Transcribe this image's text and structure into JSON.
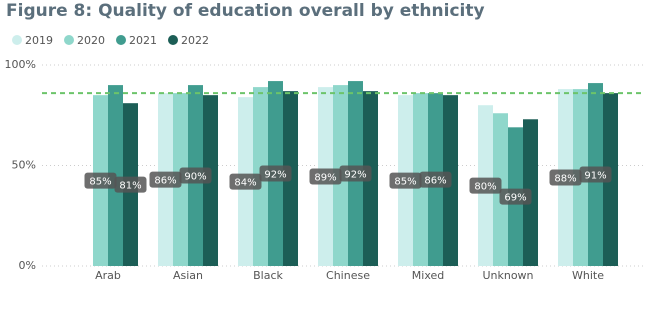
{
  "chart_data": {
    "type": "bar",
    "title": "Figure 8: Quality of education overall by ethnicity",
    "categories": [
      "Arab",
      "Asian",
      "Black",
      "Chinese",
      "Mixed",
      "Unknown",
      "White"
    ],
    "series": [
      {
        "name": "2019",
        "color": "#cdeeec",
        "values": [
          null,
          86,
          84,
          89,
          85,
          80,
          88
        ],
        "value_labels": [
          null,
          "86%",
          "84%",
          "89%",
          "85%",
          "80%",
          "88%"
        ]
      },
      {
        "name": "2020",
        "color": "#8fd7cb",
        "values": [
          85,
          86,
          89,
          90,
          86,
          76,
          88
        ],
        "value_labels": [
          "85%",
          null,
          null,
          null,
          null,
          null,
          null
        ]
      },
      {
        "name": "2021",
        "color": "#409c8f",
        "values": [
          90,
          90,
          92,
          92,
          86,
          69,
          91
        ],
        "value_labels": [
          null,
          "90%",
          "92%",
          "92%",
          "86%",
          "69%",
          "91%"
        ]
      },
      {
        "name": "2022",
        "color": "#1c5e56",
        "values": [
          81,
          85,
          87,
          87,
          85,
          73,
          86
        ],
        "value_labels": [
          "81%",
          null,
          null,
          null,
          null,
          null,
          null
        ]
      }
    ],
    "reference_line": 86,
    "ylim": [
      0,
      100
    ],
    "yticks": [
      {
        "value": 0,
        "label": "0%"
      },
      {
        "value": 50,
        "label": "50%"
      },
      {
        "value": 100,
        "label": "100%"
      }
    ],
    "grid": true
  }
}
